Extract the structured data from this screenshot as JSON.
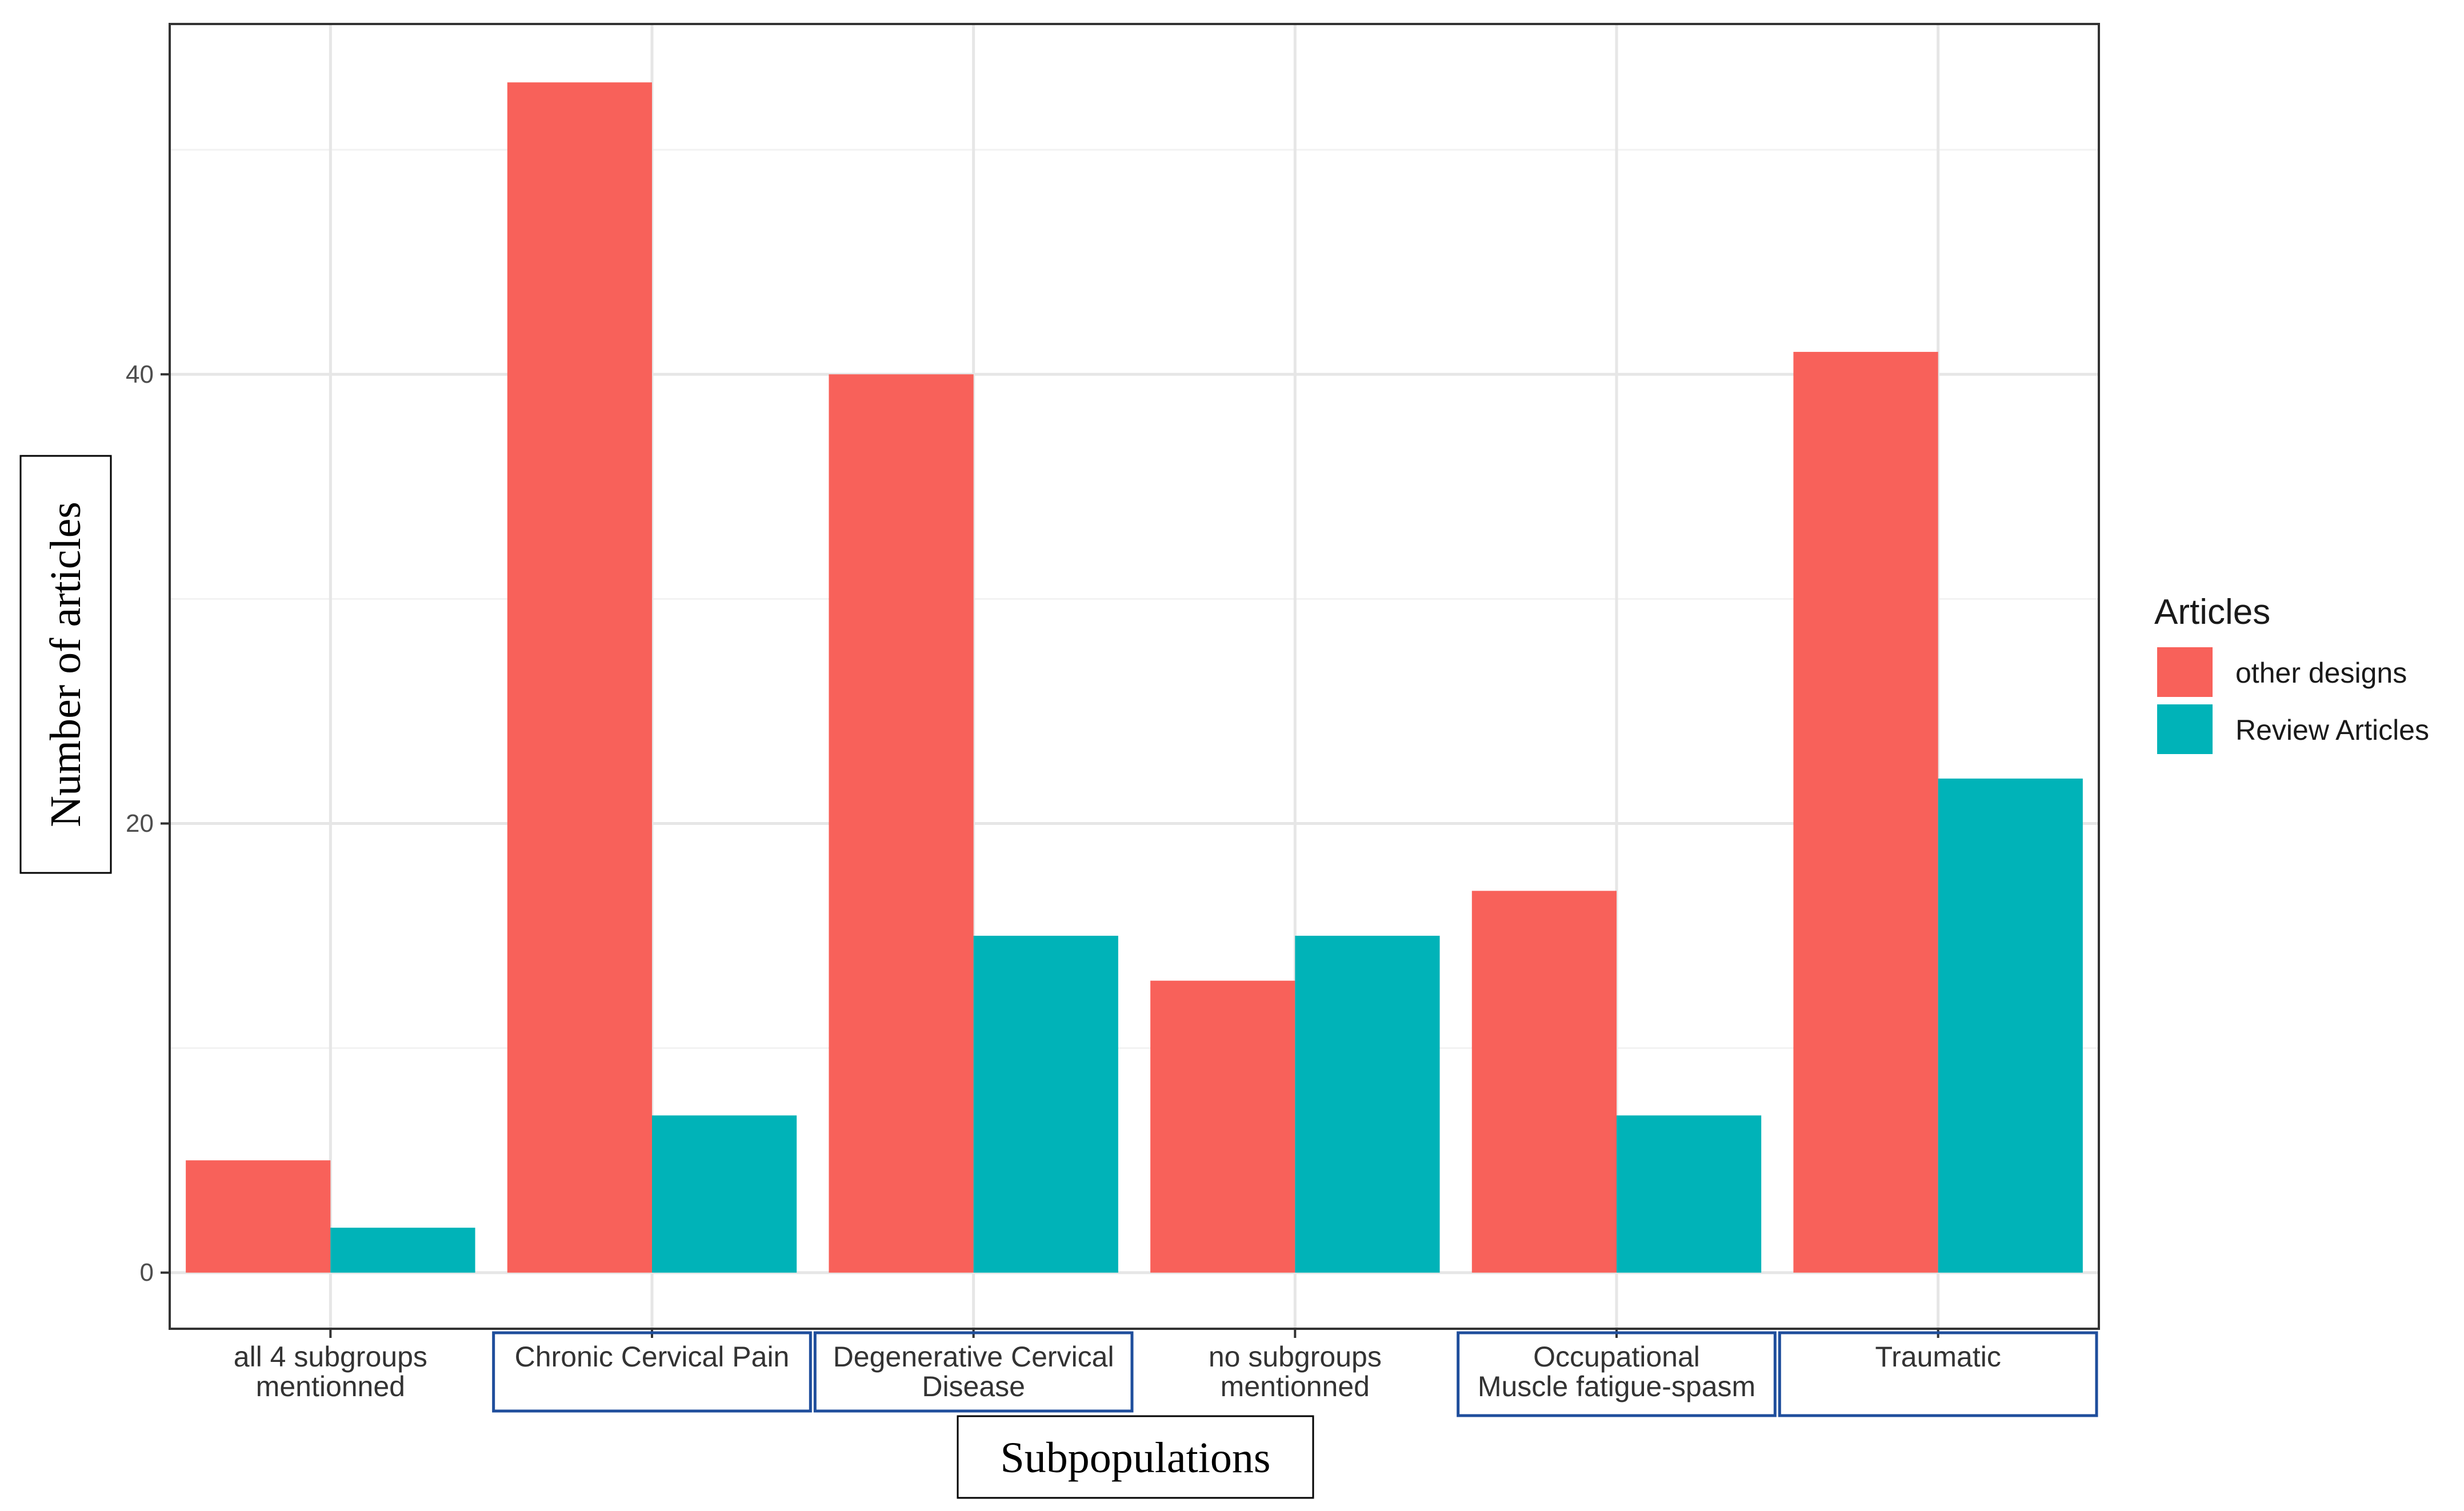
{
  "chart_data": {
    "type": "bar",
    "title": "",
    "xlabel": "Subpopulations",
    "ylabel": "Number of articles",
    "categories": [
      [
        "all 4 subgroups",
        "mentionned"
      ],
      [
        "Chronic Cervical Pain"
      ],
      [
        "Degenerative Cervical",
        "Disease"
      ],
      [
        "no subgroups",
        "mentionned"
      ],
      [
        "Occupational",
        "Muscle fatigue-spasm"
      ],
      [
        "Traumatic"
      ]
    ],
    "boxed_categories": [
      1,
      2,
      4,
      5
    ],
    "series": [
      {
        "name": "other designs",
        "color": "#F8615A",
        "values": [
          5,
          53,
          40,
          13,
          17,
          41
        ]
      },
      {
        "name": "Review Articles",
        "color": "#00B3B8",
        "values": [
          2,
          7,
          15,
          15,
          7,
          22
        ]
      }
    ],
    "ylim": [
      -2.5,
      55.6
    ],
    "yticks": [
      0,
      20,
      40
    ],
    "grid": true,
    "legend": {
      "title": "Articles",
      "position": "right"
    }
  }
}
